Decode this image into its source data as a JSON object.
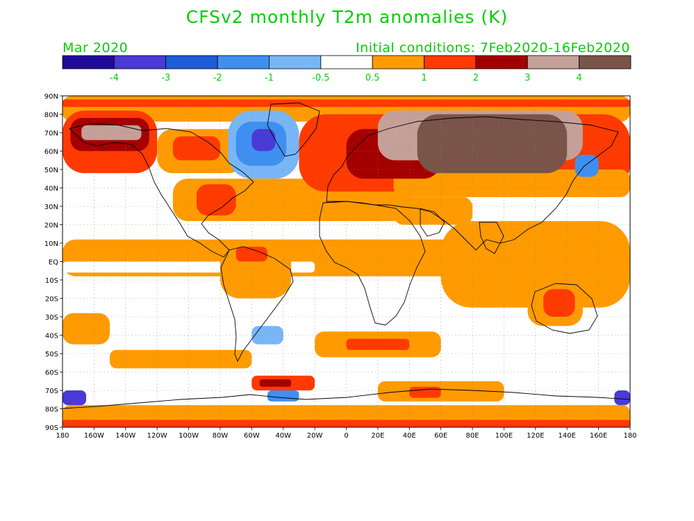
{
  "title": "CFSv2 monthly T2m anomalies (K)",
  "subtitle_left": "Mar 2020",
  "subtitle_right": "Initial conditions: 7Feb2020-16Feb2020",
  "colors": {
    "title_green": "#00d000",
    "no_anomaly": "#ffffff",
    "land_outline": "#000000"
  },
  "colorbar": {
    "bins": [
      {
        "color": "#1e0b9a"
      },
      {
        "color": "#4a3ad6"
      },
      {
        "color": "#1c5ed8"
      },
      {
        "color": "#3f8ff0"
      },
      {
        "color": "#78b6f7"
      },
      {
        "color": "#ffffff"
      },
      {
        "color": "#ff9b00"
      },
      {
        "color": "#ff3a00"
      },
      {
        "color": "#a40000"
      },
      {
        "color": "#c4a099"
      },
      {
        "color": "#7a5448"
      }
    ],
    "labels": [
      "-4",
      "-3",
      "-2",
      "-1",
      "-0.5",
      "0.5",
      "1",
      "2",
      "3",
      "4"
    ]
  },
  "axes": {
    "lat_labels": [
      "90N",
      "80N",
      "70N",
      "60N",
      "50N",
      "40N",
      "30N",
      "20N",
      "10N",
      "EQ",
      "10S",
      "20S",
      "30S",
      "40S",
      "50S",
      "60S",
      "70S",
      "80S",
      "90S"
    ],
    "lon_labels": [
      "180",
      "160W",
      "140W",
      "120W",
      "100W",
      "80W",
      "60W",
      "40W",
      "20W",
      "0",
      "20E",
      "40E",
      "60E",
      "80E",
      "100E",
      "120E",
      "140E",
      "160E",
      "180"
    ]
  },
  "anomaly_regions": [
    {
      "lon": [
        -180,
        180
      ],
      "lat": [
        76,
        90
      ],
      "color": "#ff9b00"
    },
    {
      "lon": [
        -180,
        180
      ],
      "lat": [
        84,
        88
      ],
      "color": "#ff3a00"
    },
    {
      "lon": [
        -180,
        -120
      ],
      "lat": [
        48,
        82
      ],
      "color": "#ff3a00"
    },
    {
      "lon": [
        -175,
        -125
      ],
      "lat": [
        60,
        78
      ],
      "color": "#a40000"
    },
    {
      "lon": [
        -168,
        -130
      ],
      "lat": [
        66,
        74
      ],
      "color": "#c4a099"
    },
    {
      "lon": [
        -120,
        -65
      ],
      "lat": [
        48,
        72
      ],
      "color": "#ff9b00"
    },
    {
      "lon": [
        -110,
        -80
      ],
      "lat": [
        55,
        68
      ],
      "color": "#ff3a00"
    },
    {
      "lon": [
        -75,
        -30
      ],
      "lat": [
        45,
        82
      ],
      "color": "#78b6f7"
    },
    {
      "lon": [
        -70,
        -38
      ],
      "lat": [
        52,
        76
      ],
      "color": "#3f8ff0"
    },
    {
      "lon": [
        -60,
        -45
      ],
      "lat": [
        60,
        72
      ],
      "color": "#4a3ad6"
    },
    {
      "lon": [
        -110,
        40
      ],
      "lat": [
        22,
        45
      ],
      "color": "#ff9b00"
    },
    {
      "lon": [
        -95,
        -70
      ],
      "lat": [
        25,
        42
      ],
      "color": "#ff3a00"
    },
    {
      "lon": [
        -30,
        180
      ],
      "lat": [
        38,
        80
      ],
      "color": "#ff3a00"
    },
    {
      "lon": [
        30,
        180
      ],
      "lat": [
        35,
        50
      ],
      "color": "#ff9b00"
    },
    {
      "lon": [
        0,
        60
      ],
      "lat": [
        45,
        72
      ],
      "color": "#a40000"
    },
    {
      "lon": [
        20,
        150
      ],
      "lat": [
        55,
        82
      ],
      "color": "#c4a099"
    },
    {
      "lon": [
        45,
        140
      ],
      "lat": [
        48,
        80
      ],
      "color": "#7a5448"
    },
    {
      "lon": [
        145,
        160
      ],
      "lat": [
        46,
        58
      ],
      "color": "#3f8ff0"
    },
    {
      "lon": [
        30,
        80
      ],
      "lat": [
        20,
        35
      ],
      "color": "#ff9b00"
    },
    {
      "lon": [
        -180,
        180
      ],
      "lat": [
        -8,
        12
      ],
      "color": "#ff9b00"
    },
    {
      "lon": [
        -180,
        -20
      ],
      "lat": [
        -6,
        0
      ],
      "color": "#ffffff"
    },
    {
      "lon": [
        -80,
        -35
      ],
      "lat": [
        -20,
        10
      ],
      "color": "#ff9b00"
    },
    {
      "lon": [
        -70,
        -50
      ],
      "lat": [
        0,
        8
      ],
      "color": "#ff3a00"
    },
    {
      "lon": [
        60,
        180
      ],
      "lat": [
        -25,
        22
      ],
      "color": "#ff9b00"
    },
    {
      "lon": [
        115,
        150
      ],
      "lat": [
        -35,
        -12
      ],
      "color": "#ff9b00"
    },
    {
      "lon": [
        125,
        145
      ],
      "lat": [
        -30,
        -15
      ],
      "color": "#ff3a00"
    },
    {
      "lon": [
        -180,
        -150
      ],
      "lat": [
        -45,
        -28
      ],
      "color": "#ff9b00"
    },
    {
      "lon": [
        -150,
        -60
      ],
      "lat": [
        -58,
        -48
      ],
      "color": "#ff9b00"
    },
    {
      "lon": [
        -20,
        60
      ],
      "lat": [
        -52,
        -38
      ],
      "color": "#ff9b00"
    },
    {
      "lon": [
        0,
        40
      ],
      "lat": [
        -48,
        -42
      ],
      "color": "#ff3a00"
    },
    {
      "lon": [
        -60,
        -40
      ],
      "lat": [
        -45,
        -35
      ],
      "color": "#78b6f7"
    },
    {
      "lon": [
        -180,
        180
      ],
      "lat": [
        -90,
        -78
      ],
      "color": "#ff9b00"
    },
    {
      "lon": [
        -180,
        180
      ],
      "lat": [
        -90,
        -86
      ],
      "color": "#ff3a00"
    },
    {
      "lon": [
        -60,
        -20
      ],
      "lat": [
        -70,
        -62
      ],
      "color": "#ff3a00"
    },
    {
      "lon": [
        -55,
        -35
      ],
      "lat": [
        -68,
        -64
      ],
      "color": "#a40000"
    },
    {
      "lon": [
        -50,
        -30
      ],
      "lat": [
        -76,
        -70
      ],
      "color": "#3f8ff0"
    },
    {
      "lon": [
        -180,
        -165
      ],
      "lat": [
        -78,
        -70
      ],
      "color": "#4a3ad6"
    },
    {
      "lon": [
        170,
        180
      ],
      "lat": [
        -78,
        -70
      ],
      "color": "#4a3ad6"
    },
    {
      "lon": [
        20,
        100
      ],
      "lat": [
        -76,
        -65
      ],
      "color": "#ff9b00"
    },
    {
      "lon": [
        40,
        60
      ],
      "lat": [
        -74,
        -68
      ],
      "color": "#ff3a00"
    }
  ]
}
